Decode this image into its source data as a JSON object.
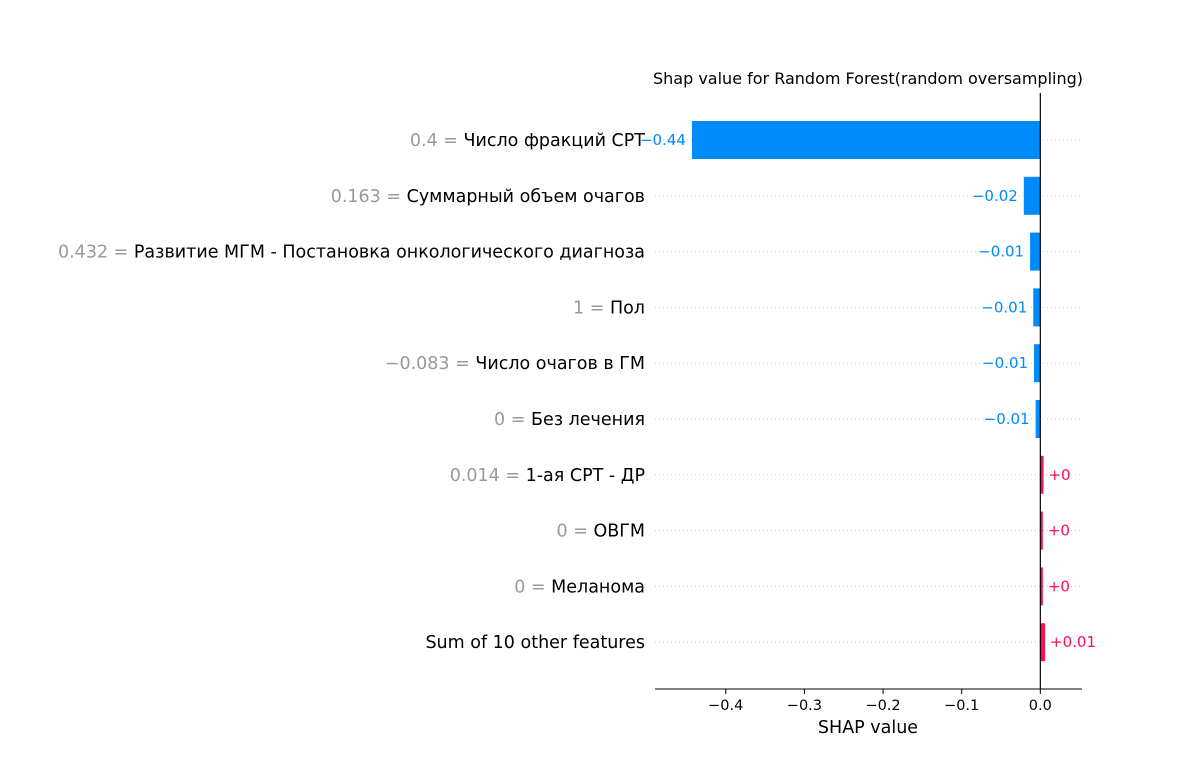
{
  "chart_data": {
    "type": "bar",
    "orientation": "horizontal",
    "title": "Shap value for Random Forest(random oversampling)",
    "xlabel": "SHAP value",
    "ylabel": "",
    "xlim": [
      -0.49,
      0.053
    ],
    "xticks": [
      {
        "value": -0.4,
        "label": "−0.4"
      },
      {
        "value": -0.3,
        "label": "−0.3"
      },
      {
        "value": -0.2,
        "label": "−0.2"
      },
      {
        "value": -0.1,
        "label": "−0.1"
      },
      {
        "value": 0.0,
        "label": "0.0"
      }
    ],
    "grid": "dotted-horizontal",
    "positive_color": "#ff0d57",
    "negative_color": "#008bfb",
    "features": [
      {
        "value_text": "0.4",
        "name": "Число фракций СРТ",
        "shap": -0.443,
        "label": "−0.44"
      },
      {
        "value_text": "0.163",
        "name": "Суммарный объем очагов",
        "shap": -0.021,
        "label": "−0.02"
      },
      {
        "value_text": "0.432",
        "name": "Развитие МГМ - Постановка онкологического диагноза",
        "shap": -0.013,
        "label": "−0.01"
      },
      {
        "value_text": "1",
        "name": "Пол",
        "shap": -0.009,
        "label": "−0.01"
      },
      {
        "value_text": "−0.083",
        "name": "Число очагов в ГМ",
        "shap": -0.008,
        "label": "−0.01"
      },
      {
        "value_text": "0",
        "name": "Без лечения",
        "shap": -0.006,
        "label": "−0.01"
      },
      {
        "value_text": "0.014",
        "name": "1-ая СРТ - ДР",
        "shap": 0.004,
        "label": "+0"
      },
      {
        "value_text": "0",
        "name": "ОВГМ",
        "shap": 0.003,
        "label": "+0"
      },
      {
        "value_text": "0",
        "name": "Меланома",
        "shap": 0.003,
        "label": "+0"
      },
      {
        "value_text": "",
        "name": "Sum of 10 other features",
        "shap": 0.006,
        "label": "+0.01"
      }
    ]
  }
}
